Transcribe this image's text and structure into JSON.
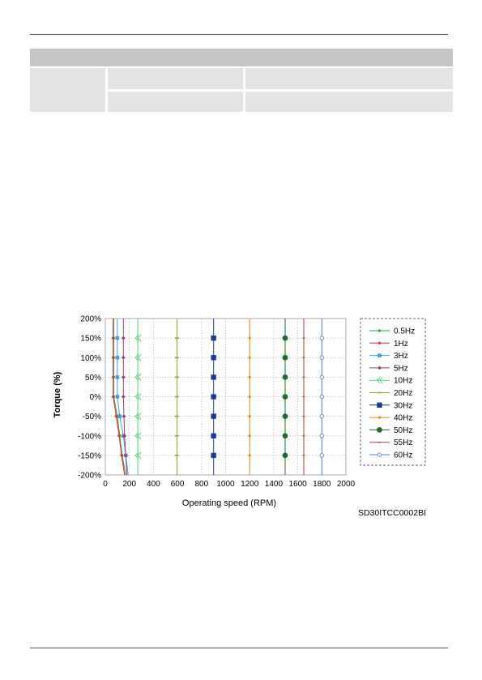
{
  "chart_data": {
    "type": "line",
    "xlabel": "Operating speed (RPM)",
    "ylabel": "Torque (%)",
    "xlim": [
      0,
      2000
    ],
    "ylim": [
      -200,
      200
    ],
    "x_ticks": [
      "0",
      "200",
      "400",
      "600",
      "800",
      "1000",
      "1200",
      "1400",
      "1600",
      "1800",
      "2000"
    ],
    "y_ticks": [
      "200%",
      "150%",
      "100%",
      "50%",
      "0%",
      "-50%",
      "-100%",
      "-150%",
      "-200%"
    ],
    "grid": true,
    "legend_position": "right",
    "figure_code": "SD30ITCC0002BI",
    "series": [
      {
        "name": "0.5Hz",
        "color": "#2e9e44",
        "marker": "dot",
        "points": [
          [
            70,
            200
          ],
          [
            70,
            150
          ],
          [
            70,
            100
          ],
          [
            70,
            50
          ],
          [
            70,
            0
          ],
          [
            100,
            -50
          ],
          [
            120,
            -100
          ],
          [
            140,
            -150
          ],
          [
            170,
            -200
          ]
        ]
      },
      {
        "name": "1Hz",
        "color": "#e03030",
        "marker": "dot",
        "points": [
          [
            65,
            200
          ],
          [
            65,
            150
          ],
          [
            65,
            100
          ],
          [
            65,
            50
          ],
          [
            65,
            0
          ],
          [
            90,
            -50
          ],
          [
            115,
            -100
          ],
          [
            135,
            -150
          ],
          [
            160,
            -200
          ]
        ]
      },
      {
        "name": "3Hz",
        "color": "#3fa0d8",
        "marker": "square",
        "points": [
          [
            100,
            200
          ],
          [
            100,
            150
          ],
          [
            100,
            100
          ],
          [
            100,
            50
          ],
          [
            100,
            0
          ],
          [
            120,
            -50
          ],
          [
            150,
            -100
          ],
          [
            170,
            -150
          ],
          [
            190,
            -200
          ]
        ]
      },
      {
        "name": "5Hz",
        "color": "#9a3d6e",
        "marker": "diamond",
        "points": [
          [
            150,
            200
          ],
          [
            150,
            150
          ],
          [
            150,
            100
          ],
          [
            150,
            50
          ],
          [
            150,
            0
          ],
          [
            155,
            -50
          ],
          [
            160,
            -100
          ],
          [
            170,
            -150
          ],
          [
            180,
            -200
          ]
        ]
      },
      {
        "name": "10Hz",
        "color": "#5bd07a",
        "marker": "chevron",
        "points": [
          [
            270,
            200
          ],
          [
            270,
            150
          ],
          [
            270,
            100
          ],
          [
            270,
            50
          ],
          [
            270,
            0
          ],
          [
            270,
            -50
          ],
          [
            270,
            -100
          ],
          [
            270,
            -150
          ],
          [
            270,
            -200
          ]
        ]
      },
      {
        "name": "20Hz",
        "color": "#8aa836",
        "marker": "tick",
        "points": [
          [
            595,
            200
          ],
          [
            595,
            150
          ],
          [
            595,
            100
          ],
          [
            595,
            50
          ],
          [
            595,
            0
          ],
          [
            595,
            -50
          ],
          [
            595,
            -100
          ],
          [
            595,
            -150
          ],
          [
            595,
            -200
          ]
        ]
      },
      {
        "name": "30Hz",
        "color": "#1f3a93",
        "marker": "bigsquare",
        "points": [
          [
            900,
            200
          ],
          [
            900,
            150
          ],
          [
            900,
            100
          ],
          [
            900,
            50
          ],
          [
            900,
            0
          ],
          [
            900,
            -50
          ],
          [
            900,
            -100
          ],
          [
            900,
            -150
          ],
          [
            900,
            -200
          ]
        ]
      },
      {
        "name": "40Hz",
        "color": "#e88a1a",
        "marker": "dot",
        "points": [
          [
            1200,
            200
          ],
          [
            1200,
            150
          ],
          [
            1200,
            100
          ],
          [
            1200,
            50
          ],
          [
            1200,
            0
          ],
          [
            1200,
            -50
          ],
          [
            1200,
            -100
          ],
          [
            1200,
            -150
          ],
          [
            1200,
            -200
          ]
        ]
      },
      {
        "name": "50Hz",
        "color": "#1e6b2e",
        "marker": "bigdot",
        "points": [
          [
            1495,
            200
          ],
          [
            1495,
            150
          ],
          [
            1495,
            100
          ],
          [
            1495,
            50
          ],
          [
            1495,
            0
          ],
          [
            1495,
            -50
          ],
          [
            1495,
            -100
          ],
          [
            1495,
            -150
          ],
          [
            1495,
            -200
          ]
        ]
      },
      {
        "name": "55Hz",
        "color": "#b03a3a",
        "marker": "dash",
        "points": [
          [
            1650,
            200
          ],
          [
            1650,
            150
          ],
          [
            1650,
            100
          ],
          [
            1650,
            50
          ],
          [
            1650,
            0
          ],
          [
            1650,
            -50
          ],
          [
            1650,
            -100
          ],
          [
            1650,
            -150
          ],
          [
            1650,
            -200
          ]
        ]
      },
      {
        "name": "60Hz",
        "color": "#4a7fc0",
        "marker": "hollow",
        "points": [
          [
            1800,
            200
          ],
          [
            1800,
            150
          ],
          [
            1800,
            100
          ],
          [
            1800,
            50
          ],
          [
            1800,
            0
          ],
          [
            1800,
            -50
          ],
          [
            1800,
            -100
          ],
          [
            1800,
            -150
          ],
          [
            1800,
            -200
          ]
        ]
      }
    ]
  }
}
